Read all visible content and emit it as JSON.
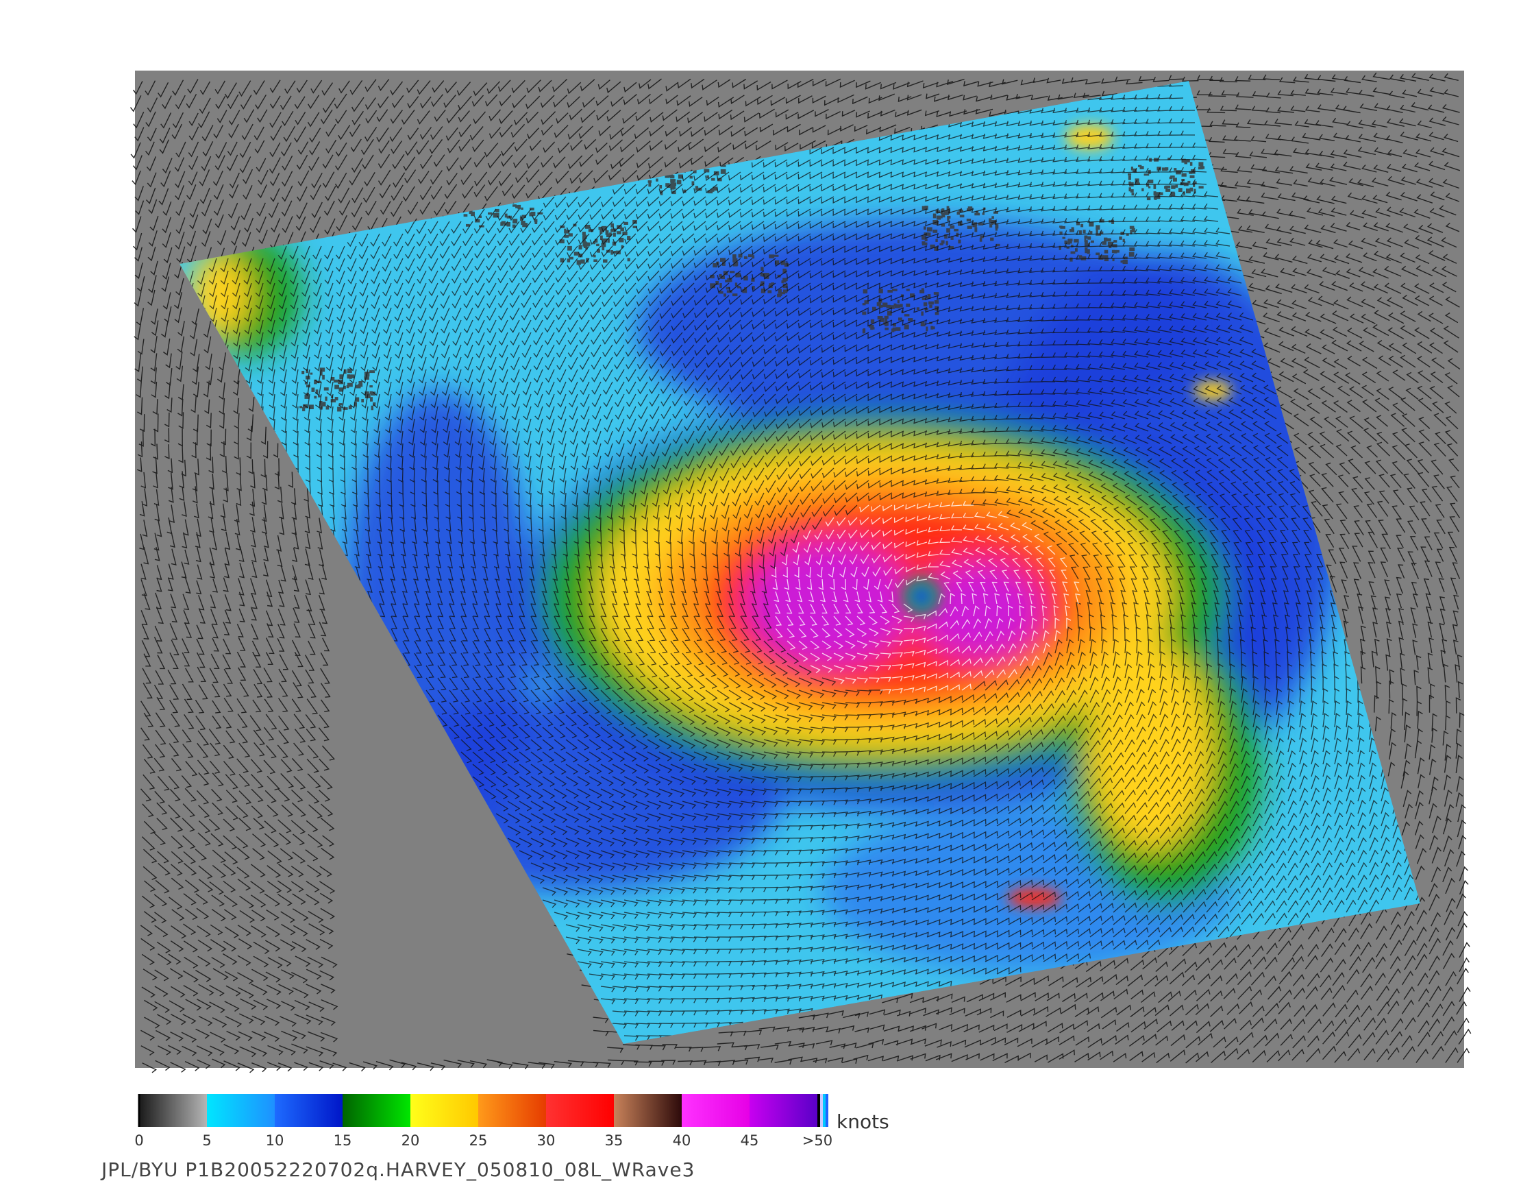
{
  "legend": {
    "unit": "knots",
    "ticks": [
      "0",
      "5",
      "10",
      "15",
      "20",
      "25",
      "30",
      "35",
      "40",
      "45",
      ">50"
    ],
    "segments": [
      {
        "from": "#1a1a1a",
        "to": "#b5b5b5"
      },
      {
        "from": "#00e6ff",
        "to": "#1e90ff"
      },
      {
        "from": "#1e6bff",
        "to": "#0016c8"
      },
      {
        "from": "#006400",
        "to": "#00e600"
      },
      {
        "from": "#ffff1a",
        "to": "#ffc800"
      },
      {
        "from": "#ff9a1a",
        "to": "#e63c00"
      },
      {
        "from": "#ff3232",
        "to": "#ff0000"
      },
      {
        "from": "#c8825a",
        "to": "#2d0a0a"
      },
      {
        "from": "#ff32ff",
        "to": "#e600e6"
      },
      {
        "from": "#c800f0",
        "to": "#5a00c8"
      }
    ],
    "end_stripes": [
      "#000000",
      "#c8c8ff",
      "#00c8ff",
      "#1e64ff"
    ]
  },
  "caption": "JPL/BYU  P1B20052220702q.HARVEY_050810_08L_WRave3",
  "colors": {
    "background_gray": "#808080",
    "calm": "#3a3a3a",
    "light_wind": "#3fc6ee",
    "moderate_wind": "#1f3fdc",
    "strong_wind": "#1ea01e",
    "gale": "#ffd21e",
    "storm": "#ff5a14",
    "severe": "#ff1e1e",
    "extreme": "#cc1cd6"
  },
  "icons": [
    "wind-barb-icon"
  ]
}
